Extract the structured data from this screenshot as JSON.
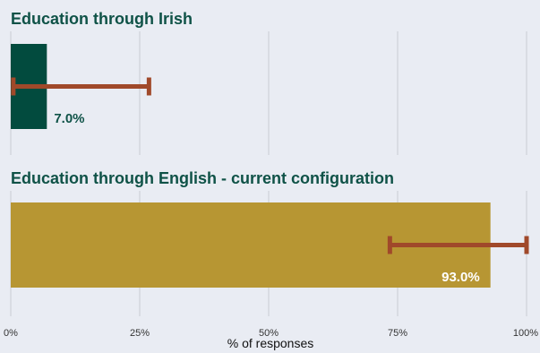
{
  "chart_data": {
    "type": "bar",
    "orientation": "horizontal",
    "xlabel": "% of responses",
    "xlim": [
      0,
      100
    ],
    "x_ticks": [
      "0%",
      "25%",
      "50%",
      "75%",
      "100%"
    ],
    "x_tick_values": [
      0,
      25,
      50,
      75,
      100
    ],
    "grid": true,
    "error_bar_color": "#a0492a",
    "panels": [
      {
        "title": "Education through Irish",
        "value": 7.0,
        "value_label": "7.0%",
        "error_low": 0.5,
        "error_high": 26.8,
        "bar_color": "#024b3e",
        "label_color": "#0f5247"
      },
      {
        "title": "Education through English - current configuration",
        "value": 93.0,
        "value_label": "93.0%",
        "error_low": 73.5,
        "error_high": 100.0,
        "bar_color": "#b79633",
        "label_color": "#ffffff"
      }
    ]
  }
}
